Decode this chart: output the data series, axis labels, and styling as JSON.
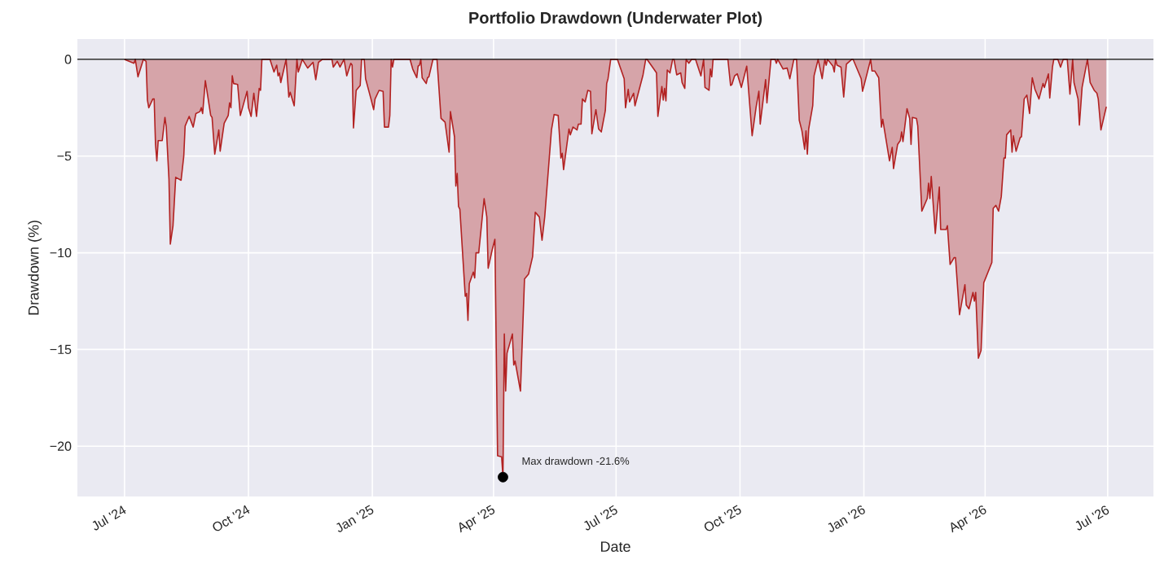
{
  "chart_data": {
    "type": "area",
    "title": "Portfolio Drawdown (Underwater Plot)",
    "xlabel": "Date",
    "ylabel": "Drawdown (%)",
    "xlim": [
      "2024-05-27",
      "2026-08-04"
    ],
    "ylim": [
      -22.6,
      1.05
    ],
    "xticks": [
      {
        "value": "2024-07-01",
        "label": "Jul '24"
      },
      {
        "value": "2024-10-01",
        "label": "Oct '24"
      },
      {
        "value": "2025-01-01",
        "label": "Jan '25"
      },
      {
        "value": "2025-04-01",
        "label": "Apr '25"
      },
      {
        "value": "2025-07-01",
        "label": "Jul '25"
      },
      {
        "value": "2025-10-01",
        "label": "Oct '25"
      },
      {
        "value": "2026-01-01",
        "label": "Jan '26"
      },
      {
        "value": "2026-04-01",
        "label": "Apr '26"
      },
      {
        "value": "2026-07-01",
        "label": "Jul '26"
      }
    ],
    "yticks": [
      {
        "value": -20,
        "label": "−20"
      },
      {
        "value": -15,
        "label": "−15"
      },
      {
        "value": -10,
        "label": "−10"
      },
      {
        "value": -5,
        "label": "−5"
      },
      0
    ],
    "grid": true,
    "ref_lines": [
      {
        "axis": "y",
        "value": 0,
        "color": "#000000"
      }
    ],
    "annotations": [
      {
        "text": "Max drawdown -21.6%",
        "x": "2025-04-08",
        "y": -21.6
      }
    ],
    "series": [
      {
        "color": "#b22222",
        "x": [
          "2024-07-01",
          "2024-07-08",
          "2024-07-09",
          "2024-07-11",
          "2024-07-15",
          "2024-07-17",
          "2024-07-18",
          "2024-07-19",
          "2024-07-22",
          "2024-07-23",
          "2024-07-24",
          "2024-07-25",
          "2024-07-26",
          "2024-07-29",
          "2024-07-31",
          "2024-08-01",
          "2024-08-03",
          "2024-08-04",
          "2024-08-06",
          "2024-08-08",
          "2024-08-12",
          "2024-08-14",
          "2024-08-15",
          "2024-08-18",
          "2024-08-21",
          "2024-08-23",
          "2024-08-26",
          "2024-08-27",
          "2024-08-28",
          "2024-08-30",
          "2024-09-03",
          "2024-09-04",
          "2024-09-06",
          "2024-09-09",
          "2024-09-10",
          "2024-09-13",
          "2024-09-16",
          "2024-09-17",
          "2024-09-18",
          "2024-09-19",
          "2024-09-20",
          "2024-09-23",
          "2024-09-25",
          "2024-09-30",
          "2024-10-01",
          "2024-10-03",
          "2024-10-05",
          "2024-10-07",
          "2024-10-09",
          "2024-10-10",
          "2024-10-11",
          "2024-10-17",
          "2024-10-20",
          "2024-10-22",
          "2024-10-23",
          "2024-10-24",
          "2024-10-25",
          "2024-10-29",
          "2024-10-31",
          "2024-11-01",
          "2024-11-04",
          "2024-11-06",
          "2024-11-07",
          "2024-11-10",
          "2024-11-14",
          "2024-11-18",
          "2024-11-20",
          "2024-11-22",
          "2024-11-25",
          "2024-12-02",
          "2024-12-03",
          "2024-12-06",
          "2024-12-08",
          "2024-12-11",
          "2024-12-13",
          "2024-12-16",
          "2024-12-17",
          "2024-12-18",
          "2024-12-20",
          "2024-12-23",
          "2024-12-24",
          "2024-12-26",
          "2024-12-27",
          "2024-12-31",
          "2025-01-02",
          "2025-01-03",
          "2025-01-06",
          "2025-01-09",
          "2025-01-10",
          "2025-01-13",
          "2025-01-14",
          "2025-01-15",
          "2025-01-16",
          "2025-01-17",
          "2025-01-29",
          "2025-01-31",
          "2025-02-03",
          "2025-02-04",
          "2025-02-05",
          "2025-02-06",
          "2025-02-07",
          "2025-02-10",
          "2025-02-11",
          "2025-02-12",
          "2025-02-15",
          "2025-02-18",
          "2025-02-21",
          "2025-02-24",
          "2025-02-27",
          "2025-02-28",
          "2025-03-03",
          "2025-03-04",
          "2025-03-05",
          "2025-03-06",
          "2025-03-07",
          "2025-03-11",
          "2025-03-12",
          "2025-03-13",
          "2025-03-14",
          "2025-03-17",
          "2025-03-18",
          "2025-03-19",
          "2025-03-21",
          "2025-03-25",
          "2025-03-27",
          "2025-03-28",
          "2025-03-31",
          "2025-04-02",
          "2025-04-04",
          "2025-04-07",
          "2025-04-08",
          "2025-04-09",
          "2025-04-10",
          "2025-04-11",
          "2025-04-15",
          "2025-04-16",
          "2025-04-17",
          "2025-04-21",
          "2025-04-24",
          "2025-04-27",
          "2025-04-30",
          "2025-05-02",
          "2025-05-05",
          "2025-05-07",
          "2025-05-09",
          "2025-05-14",
          "2025-05-16",
          "2025-05-19",
          "2025-05-21",
          "2025-05-22",
          "2025-05-23",
          "2025-05-27",
          "2025-05-28",
          "2025-05-30",
          "2025-06-02",
          "2025-06-03",
          "2025-06-05",
          "2025-06-06",
          "2025-06-08",
          "2025-06-10",
          "2025-06-12",
          "2025-06-13",
          "2025-06-16",
          "2025-06-18",
          "2025-06-20",
          "2025-06-23",
          "2025-06-24",
          "2025-06-25",
          "2025-06-27",
          "2025-07-02",
          "2025-07-07",
          "2025-07-08",
          "2025-07-10",
          "2025-07-11",
          "2025-07-14",
          "2025-07-15",
          "2025-07-21",
          "2025-07-23",
          "2025-07-24",
          "2025-07-29",
          "2025-07-31",
          "2025-08-01",
          "2025-08-04",
          "2025-08-05",
          "2025-08-06",
          "2025-08-07",
          "2025-08-08",
          "2025-08-10",
          "2025-08-12",
          "2025-08-13",
          "2025-08-15",
          "2025-08-18",
          "2025-08-19",
          "2025-08-21",
          "2025-08-22",
          "2025-08-24",
          "2025-08-26",
          "2025-08-29",
          "2025-09-02",
          "2025-09-04",
          "2025-09-05",
          "2025-09-08",
          "2025-09-09",
          "2025-09-10",
          "2025-09-11",
          "2025-09-22",
          "2025-09-24",
          "2025-09-25",
          "2025-09-27",
          "2025-09-29",
          "2025-10-02",
          "2025-10-06",
          "2025-10-10",
          "2025-10-13",
          "2025-10-15",
          "2025-10-16",
          "2025-10-20",
          "2025-10-21",
          "2025-10-24",
          "2025-10-27",
          "2025-10-28",
          "2025-10-29",
          "2025-11-02",
          "2025-11-05",
          "2025-11-07",
          "2025-11-10",
          "2025-11-12",
          "2025-11-14",
          "2025-11-16",
          "2025-11-18",
          "2025-11-19",
          "2025-11-20",
          "2025-11-21",
          "2025-11-24",
          "2025-11-25",
          "2025-11-28",
          "2025-12-01",
          "2025-12-03",
          "2025-12-04",
          "2025-12-05",
          "2025-12-09",
          "2025-12-10",
          "2025-12-11",
          "2025-12-12",
          "2025-12-15",
          "2025-12-17",
          "2025-12-19",
          "2025-12-23",
          "2025-12-24",
          "2025-12-30",
          "2025-12-31",
          "2026-01-06",
          "2026-01-07",
          "2026-01-09",
          "2026-01-12",
          "2026-01-14",
          "2026-01-15",
          "2026-01-20",
          "2026-01-22",
          "2026-01-23",
          "2026-01-26",
          "2026-01-28",
          "2026-01-29",
          "2026-01-30",
          "2026-02-02",
          "2026-02-04",
          "2026-02-05",
          "2026-02-06",
          "2026-02-09",
          "2026-02-10",
          "2026-02-13",
          "2026-02-17",
          "2026-02-18",
          "2026-02-19",
          "2026-02-20",
          "2026-02-23",
          "2026-02-26",
          "2026-02-27",
          "2026-03-03",
          "2026-03-04",
          "2026-03-06",
          "2026-03-09",
          "2026-03-10",
          "2026-03-13",
          "2026-03-17",
          "2026-03-18",
          "2026-03-20",
          "2026-03-23",
          "2026-03-24",
          "2026-03-25",
          "2026-03-27",
          "2026-03-29",
          "2026-03-31",
          "2026-04-06",
          "2026-04-07",
          "2026-04-09",
          "2026-04-11",
          "2026-04-13",
          "2026-04-15",
          "2026-04-16",
          "2026-04-17",
          "2026-04-20",
          "2026-04-21",
          "2026-04-22",
          "2026-04-24",
          "2026-04-27",
          "2026-04-28",
          "2026-04-30",
          "2026-05-02",
          "2026-05-04",
          "2026-05-06",
          "2026-05-08",
          "2026-05-11",
          "2026-05-14",
          "2026-05-15",
          "2026-05-18",
          "2026-05-19",
          "2026-05-21",
          "2026-05-22",
          "2026-05-25",
          "2026-05-27",
          "2026-05-29",
          "2026-06-01",
          "2026-06-03",
          "2026-06-05",
          "2026-06-06",
          "2026-06-09",
          "2026-06-10",
          "2026-06-12",
          "2026-06-16",
          "2026-06-18",
          "2026-06-21",
          "2026-06-23",
          "2026-06-24",
          "2026-06-26",
          "2026-06-30"
        ],
        "values": [
          0,
          -0.2,
          0,
          -0.9,
          0,
          -0.1,
          -2.1,
          -2.5,
          -2.05,
          -2.05,
          -4.4,
          -5.25,
          -4.2,
          -4.2,
          -3.0,
          -3.5,
          -6.2,
          -9.55,
          -8.6,
          -6.1,
          -6.25,
          -5.0,
          -3.45,
          -2.95,
          -3.5,
          -2.8,
          -2.7,
          -2.5,
          -2.8,
          -1.1,
          -2.9,
          -3.0,
          -4.9,
          -3.65,
          -4.75,
          -3.3,
          -2.9,
          -2.25,
          -2.5,
          -0.85,
          -1.25,
          -1.3,
          -2.9,
          -1.65,
          -2.5,
          -2.95,
          -1.75,
          -2.95,
          -1.5,
          -1.6,
          0,
          0,
          -0.65,
          -0.3,
          -0.85,
          -0.7,
          -1.2,
          0,
          -1.95,
          -1.7,
          -2.4,
          0,
          -0.65,
          0,
          -0.45,
          -0.15,
          -1.05,
          -0.15,
          0,
          0,
          -0.4,
          -0.1,
          -0.4,
          0,
          -0.85,
          -0.2,
          -0.3,
          -3.55,
          -1.6,
          -1.35,
          0,
          0,
          -1.0,
          -2.05,
          -2.6,
          -2.05,
          -1.6,
          -1.65,
          -3.5,
          -3.5,
          -2.9,
          0,
          -0.4,
          0,
          0,
          -0.5,
          -0.95,
          -0.35,
          -0.3,
          0,
          -0.95,
          -1.25,
          -0.95,
          -0.9,
          0,
          0,
          -3.05,
          -3.25,
          -4.8,
          -2.7,
          -4.0,
          -6.55,
          -5.9,
          -7.6,
          -7.75,
          -12.25,
          -12.1,
          -13.5,
          -11.6,
          -11.0,
          -11.3,
          -10.0,
          -10.0,
          -7.2,
          -8.15,
          -10.8,
          -9.85,
          -9.3,
          -20.5,
          -20.55,
          -21.6,
          -14.2,
          -17.15,
          -15.2,
          -14.2,
          -15.8,
          -15.6,
          -17.15,
          -11.35,
          -11.1,
          -10.2,
          -7.9,
          -8.15,
          -9.35,
          -8.15,
          -3.65,
          -2.85,
          -2.9,
          -5.1,
          -4.85,
          -5.7,
          -3.6,
          -3.9,
          -3.5,
          -3.65,
          -3.35,
          -3.35,
          -2.05,
          -2.2,
          -1.6,
          -1.65,
          -3.85,
          -2.6,
          -3.6,
          -3.75,
          -2.65,
          -1.25,
          -1.0,
          0,
          0,
          -1.0,
          -2.5,
          -1.55,
          -2.2,
          -1.75,
          -2.4,
          -0.8,
          0,
          0,
          -0.5,
          -0.7,
          -2.95,
          -1.4,
          -2.1,
          -1.5,
          -2.15,
          -0.55,
          -0.7,
          0,
          0,
          -0.8,
          -0.7,
          -1.2,
          -1.5,
          0,
          -0.2,
          0,
          0,
          -0.85,
          0,
          -1.45,
          -1.6,
          -0.5,
          -0.9,
          0,
          0,
          -1.35,
          -1.3,
          -0.85,
          -0.75,
          -1.45,
          -0.35,
          -3.95,
          -2.45,
          -1.65,
          -3.35,
          -1.05,
          -2.25,
          0,
          0,
          -0.2,
          0,
          -0.5,
          -0.45,
          -1.0,
          0,
          0,
          -3.15,
          -3.7,
          -4.65,
          -3.7,
          -4.9,
          -3.6,
          -2.4,
          -0.85,
          0,
          -1.0,
          0,
          -0.3,
          0,
          -0.35,
          -0.65,
          0,
          -0.3,
          -0.4,
          -1.95,
          -0.25,
          0,
          0,
          -1.0,
          -1.65,
          0,
          -0.6,
          -0.6,
          -0.95,
          -3.5,
          -3.1,
          -5.25,
          -4.55,
          -5.65,
          -4.4,
          -4.2,
          -3.75,
          -4.25,
          -2.55,
          -3.05,
          -4.4,
          -3.0,
          -3.05,
          -3.45,
          -7.85,
          -7.2,
          -6.4,
          -7.2,
          -6.05,
          -9.0,
          -6.6,
          -8.8,
          -8.8,
          -8.6,
          -10.6,
          -10.25,
          -10.25,
          -13.2,
          -11.65,
          -12.7,
          -12.9,
          -12.05,
          -12.5,
          -12.05,
          -15.45,
          -15.05,
          -11.55,
          -10.5,
          -7.7,
          -7.55,
          -7.85,
          -7.1,
          -5.1,
          -5.1,
          -3.9,
          -3.65,
          -4.8,
          -3.95,
          -4.75,
          -4.05,
          -4.0,
          -2.05,
          -1.85,
          -2.8,
          -0.95,
          -1.55,
          -2.05,
          -1.25,
          -1.45,
          -0.75,
          -2.0,
          -0.4,
          0,
          0,
          -0.4,
          0,
          0,
          -1.8,
          0,
          -1.2,
          -2.05,
          -3.4,
          -1.45,
          0,
          -1.2,
          -1.6,
          -1.75,
          -2.05,
          -3.65,
          -2.45
        ]
      },
      {
        "type": "scatter",
        "color": "#000000",
        "marker": "circle",
        "x": [
          "2025-04-08"
        ],
        "values": [
          -21.6
        ]
      }
    ]
  }
}
